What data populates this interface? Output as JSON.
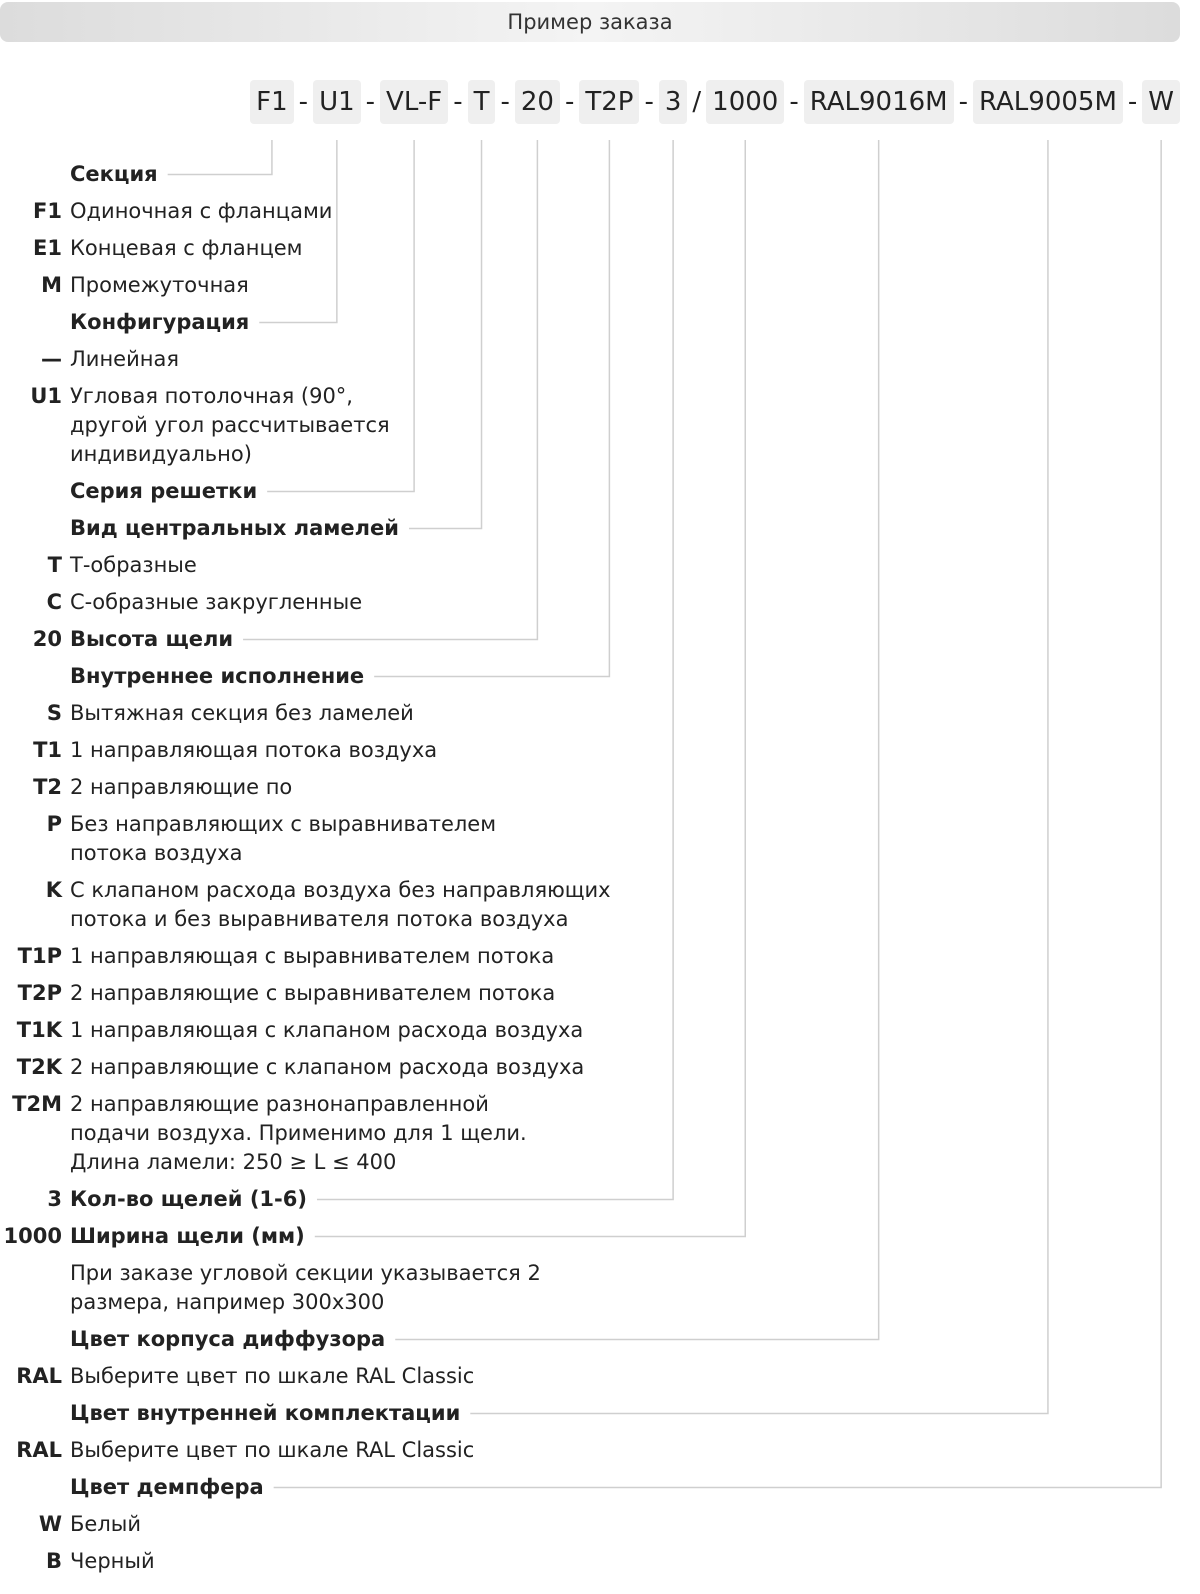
{
  "header": {
    "title": "Пример заказа"
  },
  "code": {
    "segments": [
      "F1",
      "U1",
      "VL-F",
      "T",
      "20",
      "T2P",
      "3",
      "1000",
      "RAL9016M",
      "RAL9005M",
      "W"
    ],
    "separators": [
      "-",
      "-",
      "-",
      "-",
      "-",
      "-",
      "/",
      "-",
      "-",
      "-"
    ]
  },
  "sections": [
    {
      "heading": "Секция",
      "items": [
        {
          "code": "F1",
          "text": "Одиночная с фланцами"
        },
        {
          "code": "E1",
          "text": "Концевая с фланцем"
        },
        {
          "code": "M",
          "text": "Промежуточная"
        }
      ]
    },
    {
      "heading": "Конфигурация",
      "items": [
        {
          "code": "—",
          "text": "Линейная"
        },
        {
          "code": "U1",
          "text": "Угловая потолочная (90°,\nдругой угол рассчитывается\nиндивидуально)"
        }
      ]
    },
    {
      "heading": "Серия решетки",
      "items": []
    },
    {
      "heading": "Вид центральных ламелей",
      "items": [
        {
          "code": "T",
          "text": "Т-образные"
        },
        {
          "code": "C",
          "text": "С-образные закругленные"
        }
      ]
    },
    {
      "code": "20",
      "heading": "Высота щели",
      "items": []
    },
    {
      "heading": "Внутреннее исполнение",
      "items": [
        {
          "code": "S",
          "text": "Вытяжная секция без ламелей"
        },
        {
          "code": "T1",
          "text": "1 направляющая потока воздуха"
        },
        {
          "code": "T2",
          "text": "2 направляющие по"
        },
        {
          "code": "P",
          "text": "Без направляющих с выравнивателем\nпотока воздуха"
        },
        {
          "code": "K",
          "text": "С клапаном расхода воздуха без направляющих\nпотока и без выравнивателя потока воздуха"
        },
        {
          "code": "T1P",
          "text": "1 направляющая с выравнивателем потока"
        },
        {
          "code": "T2P",
          "text": "2 направляющие с выравнивателем потока"
        },
        {
          "code": "T1K",
          "text": "1 направляющая с клапаном расхода воздуха"
        },
        {
          "code": "T2K",
          "text": "2 направляющие с клапаном расхода воздуха"
        },
        {
          "code": "T2M",
          "text": "2 направляющие разнонаправленной\nподачи воздуха. Применимо для 1 щели.\nДлина ламели: 250 ≥ L ≤ 400"
        }
      ]
    },
    {
      "code": "3",
      "heading": "Кол-во щелей (1-6)",
      "items": []
    },
    {
      "code": "1000",
      "heading": "Ширина щели (мм)",
      "items": [
        {
          "text": "При заказе угловой секции указывается 2\nразмера, например 300х300"
        }
      ]
    },
    {
      "heading": "Цвет корпуса диффузора",
      "items": [
        {
          "code": "RAL",
          "text": "Выберите цвет по шкале RAL Classic"
        }
      ]
    },
    {
      "heading": "Цвет внутренней комплектации",
      "items": [
        {
          "code": "RAL",
          "text": "Выберите цвет по шкале RAL Classic"
        }
      ]
    },
    {
      "heading": "Цвет демпфера",
      "items": [
        {
          "code": "W",
          "text": "Белый"
        },
        {
          "code": "B",
          "text": "Черный"
        }
      ]
    }
  ]
}
